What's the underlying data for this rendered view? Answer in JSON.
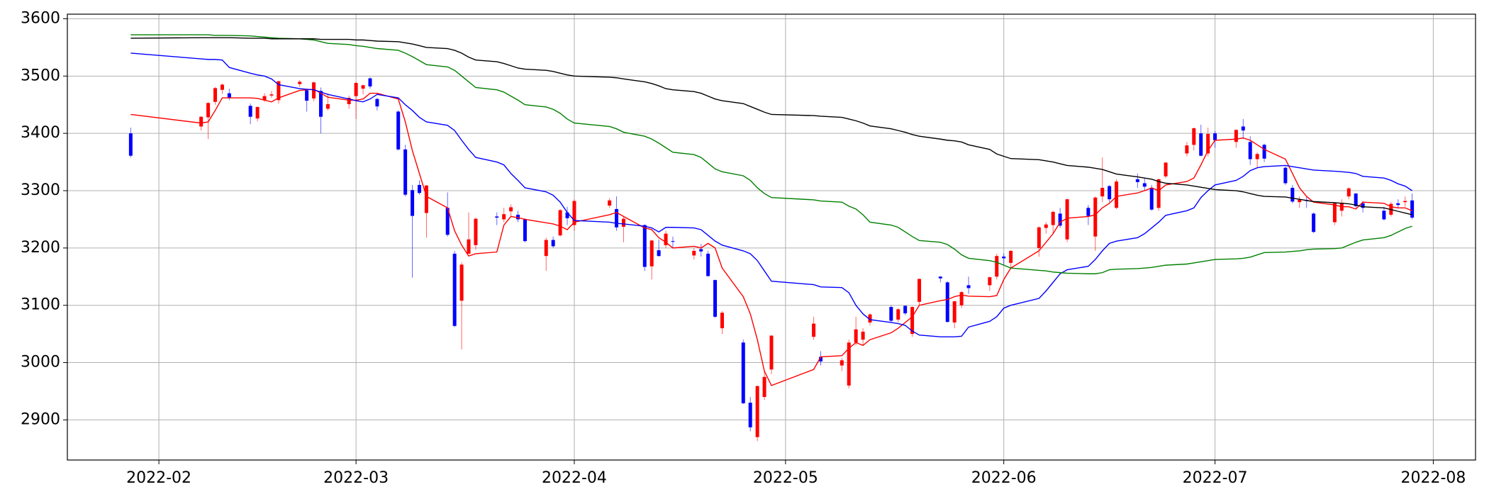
{
  "chart_data": {
    "type": "candlestick",
    "x": [
      "2022-01-28",
      "2022-02-07",
      "2022-02-08",
      "2022-02-09",
      "2022-02-10",
      "2022-02-11",
      "2022-02-14",
      "2022-02-15",
      "2022-02-16",
      "2022-02-17",
      "2022-02-18",
      "2022-02-21",
      "2022-02-22",
      "2022-02-23",
      "2022-02-24",
      "2022-02-25",
      "2022-02-28",
      "2022-03-01",
      "2022-03-02",
      "2022-03-03",
      "2022-03-04",
      "2022-03-07",
      "2022-03-08",
      "2022-03-09",
      "2022-03-10",
      "2022-03-11",
      "2022-03-14",
      "2022-03-15",
      "2022-03-16",
      "2022-03-17",
      "2022-03-18",
      "2022-03-21",
      "2022-03-22",
      "2022-03-23",
      "2022-03-24",
      "2022-03-25",
      "2022-03-28",
      "2022-03-29",
      "2022-03-30",
      "2022-03-31",
      "2022-04-01",
      "2022-04-06",
      "2022-04-07",
      "2022-04-08",
      "2022-04-11",
      "2022-04-12",
      "2022-04-13",
      "2022-04-14",
      "2022-04-15",
      "2022-04-18",
      "2022-04-19",
      "2022-04-20",
      "2022-04-21",
      "2022-04-22",
      "2022-04-25",
      "2022-04-26",
      "2022-04-27",
      "2022-04-28",
      "2022-04-29",
      "2022-05-05",
      "2022-05-06",
      "2022-05-09",
      "2022-05-10",
      "2022-05-11",
      "2022-05-12",
      "2022-05-13",
      "2022-05-16",
      "2022-05-17",
      "2022-05-18",
      "2022-05-19",
      "2022-05-20",
      "2022-05-23",
      "2022-05-24",
      "2022-05-25",
      "2022-05-26",
      "2022-05-27",
      "2022-05-30",
      "2022-05-31",
      "2022-06-01",
      "2022-06-02",
      "2022-06-06",
      "2022-06-07",
      "2022-06-08",
      "2022-06-09",
      "2022-06-10",
      "2022-06-13",
      "2022-06-14",
      "2022-06-15",
      "2022-06-16",
      "2022-06-17",
      "2022-06-20",
      "2022-06-21",
      "2022-06-22",
      "2022-06-23",
      "2022-06-24",
      "2022-06-27",
      "2022-06-28",
      "2022-06-29",
      "2022-06-30",
      "2022-07-01",
      "2022-07-04",
      "2022-07-05",
      "2022-07-06",
      "2022-07-07",
      "2022-07-08",
      "2022-07-11",
      "2022-07-12",
      "2022-07-13",
      "2022-07-14",
      "2022-07-15",
      "2022-07-18",
      "2022-07-19",
      "2022-07-20",
      "2022-07-21",
      "2022-07-22",
      "2022-07-25",
      "2022-07-26",
      "2022-07-27",
      "2022-07-28",
      "2022-07-29"
    ],
    "open": [
      3400,
      3412,
      3428,
      3455,
      3476,
      3470,
      3448,
      3426,
      3458,
      3466,
      3458,
      3486,
      3475,
      3461,
      3474,
      3443,
      3451,
      3465,
      3478,
      3496,
      3460,
      3438,
      3372,
      3301,
      3310,
      3261,
      3270,
      3190,
      3108,
      3190,
      3205,
      3255,
      3250,
      3264,
      3258,
      3250,
      3186,
      3214,
      3222,
      3262,
      3240,
      3274,
      3268,
      3237,
      3240,
      3168,
      3196,
      3205,
      3212,
      3187,
      3198,
      3190,
      3144,
      3060,
      3035,
      2930,
      2870,
      2940,
      2988,
      3045,
      3010,
      2995,
      2960,
      3035,
      3040,
      3070,
      3097,
      3075,
      3099,
      3050,
      3106,
      3150,
      3140,
      3070,
      3100,
      3135,
      3135,
      3150,
      3185,
      3174,
      3200,
      3235,
      3240,
      3260,
      3215,
      3270,
      3220,
      3290,
      3308,
      3270,
      3320,
      3313,
      3305,
      3270,
      3325,
      3365,
      3380,
      3400,
      3365,
      3400,
      3385,
      3412,
      3385,
      3355,
      3380,
      3340,
      3305,
      3280,
      3284,
      3260,
      3245,
      3265,
      3290,
      3295,
      3278,
      3265,
      3258,
      3278,
      3280,
      3283
    ],
    "high": [
      3410,
      3430,
      3455,
      3481,
      3487,
      3478,
      3452,
      3447,
      3470,
      3474,
      3492,
      3493,
      3476,
      3490,
      3480,
      3470,
      3466,
      3490,
      3485,
      3498,
      3462,
      3440,
      3380,
      3310,
      3318,
      3310,
      3297,
      3195,
      3175,
      3262,
      3253,
      3262,
      3270,
      3276,
      3265,
      3252,
      3218,
      3220,
      3268,
      3272,
      3285,
      3287,
      3290,
      3255,
      3241,
      3214,
      3215,
      3230,
      3220,
      3200,
      3207,
      3195,
      3145,
      3090,
      3040,
      2940,
      2960,
      2985,
      3048,
      3080,
      3020,
      3008,
      3040,
      3080,
      3060,
      3086,
      3100,
      3095,
      3100,
      3098,
      3147,
      3151,
      3142,
      3108,
      3125,
      3150,
      3150,
      3190,
      3190,
      3196,
      3238,
      3245,
      3265,
      3270,
      3286,
      3275,
      3290,
      3358,
      3310,
      3320,
      3330,
      3322,
      3310,
      3321,
      3350,
      3385,
      3410,
      3415,
      3410,
      3404,
      3407,
      3425,
      3395,
      3367,
      3382,
      3342,
      3310,
      3290,
      3290,
      3262,
      3280,
      3285,
      3306,
      3296,
      3282,
      3272,
      3280,
      3285,
      3290,
      3295
    ],
    "low": [
      3358,
      3405,
      3390,
      3450,
      3469,
      3458,
      3416,
      3421,
      3455,
      3462,
      3452,
      3481,
      3438,
      3456,
      3400,
      3440,
      3443,
      3425,
      3468,
      3478,
      3440,
      3370,
      3290,
      3148,
      3293,
      3218,
      3220,
      3062,
      3023,
      3190,
      3197,
      3240,
      3245,
      3255,
      3245,
      3210,
      3160,
      3200,
      3220,
      3240,
      3230,
      3270,
      3230,
      3210,
      3160,
      3145,
      3185,
      3200,
      3200,
      3180,
      3185,
      3150,
      3078,
      3050,
      2928,
      2880,
      2863,
      2935,
      2980,
      3040,
      2995,
      2985,
      2955,
      3030,
      3030,
      3065,
      3070,
      3070,
      3083,
      3045,
      3100,
      3140,
      3070,
      3060,
      3095,
      3120,
      3125,
      3145,
      3170,
      3165,
      3185,
      3225,
      3225,
      3235,
      3210,
      3240,
      3195,
      3280,
      3280,
      3268,
      3305,
      3300,
      3265,
      3265,
      3322,
      3360,
      3370,
      3360,
      3360,
      3375,
      3375,
      3390,
      3345,
      3340,
      3350,
      3310,
      3278,
      3270,
      3270,
      3226,
      3240,
      3255,
      3285,
      3270,
      3262,
      3248,
      3255,
      3270,
      3272,
      3250
    ],
    "close": [
      3361,
      3429,
      3453,
      3479,
      3485,
      3462,
      3429,
      3446,
      3465,
      3468,
      3491,
      3490,
      3457,
      3489,
      3429,
      3451,
      3462,
      3488,
      3484,
      3482,
      3447,
      3372,
      3293,
      3256,
      3296,
      3309,
      3223,
      3064,
      3171,
      3215,
      3251,
      3253,
      3259,
      3271,
      3250,
      3212,
      3214,
      3203,
      3266,
      3252,
      3282,
      3283,
      3236,
      3251,
      3167,
      3213,
      3186,
      3225,
      3211,
      3195,
      3194,
      3151,
      3080,
      3087,
      2929,
      2887,
      2959,
      2975,
      3047,
      3068,
      3002,
      3004,
      3035,
      3058,
      3054,
      3084,
      3073,
      3093,
      3086,
      3097,
      3146,
      3147,
      3071,
      3107,
      3123,
      3130,
      3149,
      3186,
      3182,
      3195,
      3236,
      3241,
      3263,
      3239,
      3285,
      3256,
      3288,
      3305,
      3285,
      3316,
      3315,
      3307,
      3267,
      3320,
      3349,
      3379,
      3409,
      3361,
      3399,
      3388,
      3406,
      3405,
      3355,
      3364,
      3356,
      3313,
      3281,
      3284,
      3282,
      3228,
      3278,
      3279,
      3304,
      3273,
      3270,
      3250,
      3277,
      3275,
      3282,
      3253
    ],
    "up_color": "#ff0000",
    "down_color": "#0000ff",
    "series": [
      {
        "color": "#ff0000",
        "values": [
          3433,
          3418,
          3420,
          3440,
          3462,
          3462,
          3462,
          3461,
          3458,
          3455,
          3462,
          3475,
          3476,
          3477,
          3470,
          3463,
          3458,
          3458,
          3460,
          3470,
          3470,
          3460,
          3420,
          3370,
          3330,
          3290,
          3270,
          3230,
          3205,
          3186,
          3190,
          3193,
          3240,
          3255,
          3253,
          3250,
          3244,
          3242,
          3238,
          3232,
          3245,
          3258,
          3262,
          3255,
          3235,
          3232,
          3218,
          3210,
          3200,
          3203,
          3200,
          3208,
          3200,
          3165,
          3115,
          3085,
          3040,
          2985,
          2960,
          2988,
          3010,
          3012,
          3025,
          3035,
          3030,
          3040,
          3052,
          3060,
          3070,
          3080,
          3100,
          3108,
          3110,
          3115,
          3118,
          3116,
          3115,
          3117,
          3145,
          3165,
          3195,
          3210,
          3225,
          3245,
          3252,
          3255,
          3258,
          3270,
          3278,
          3290,
          3296,
          3300,
          3305,
          3300,
          3310,
          3316,
          3322,
          3345,
          3370,
          3388,
          3390,
          3392,
          3388,
          3380,
          3372,
          3355,
          3330,
          3305,
          3290,
          3280,
          3275,
          3272,
          3272,
          3268,
          3280,
          3278,
          3272,
          3270,
          3270,
          3265
        ]
      },
      {
        "color": "#0000ff",
        "values": [
          3540,
          3530,
          3529,
          3529,
          3528,
          3515,
          3505,
          3502,
          3500,
          3495,
          3485,
          3478,
          3477,
          3476,
          3472,
          3468,
          3460,
          3457,
          3455,
          3460,
          3468,
          3462,
          3450,
          3440,
          3428,
          3420,
          3414,
          3405,
          3388,
          3372,
          3358,
          3350,
          3345,
          3330,
          3318,
          3305,
          3298,
          3292,
          3280,
          3262,
          3248,
          3245,
          3243,
          3242,
          3238,
          3235,
          3228,
          3236,
          3236,
          3235,
          3232,
          3222,
          3212,
          3205,
          3195,
          3190,
          3178,
          3160,
          3142,
          3136,
          3132,
          3131,
          3122,
          3100,
          3085,
          3075,
          3070,
          3068,
          3065,
          3055,
          3048,
          3045,
          3045,
          3045,
          3046,
          3062,
          3072,
          3080,
          3095,
          3100,
          3112,
          3125,
          3140,
          3155,
          3162,
          3168,
          3180,
          3195,
          3208,
          3212,
          3218,
          3225,
          3235,
          3245,
          3257,
          3265,
          3270,
          3288,
          3300,
          3310,
          3318,
          3325,
          3335,
          3340,
          3342,
          3344,
          3342,
          3340,
          3338,
          3336,
          3334,
          3333,
          3332,
          3330,
          3325,
          3322,
          3318,
          3312,
          3308,
          3300
        ]
      },
      {
        "color": "#008000",
        "values": [
          3572,
          3572,
          3572,
          3571,
          3571,
          3571,
          3570,
          3569,
          3568,
          3567,
          3566,
          3565,
          3564,
          3563,
          3560,
          3557,
          3555,
          3553,
          3552,
          3550,
          3548,
          3545,
          3540,
          3534,
          3527,
          3520,
          3516,
          3510,
          3500,
          3490,
          3480,
          3476,
          3472,
          3465,
          3458,
          3450,
          3446,
          3442,
          3435,
          3425,
          3418,
          3412,
          3408,
          3402,
          3395,
          3390,
          3383,
          3375,
          3367,
          3363,
          3358,
          3348,
          3338,
          3333,
          3326,
          3318,
          3305,
          3295,
          3288,
          3284,
          3282,
          3280,
          3273,
          3268,
          3258,
          3245,
          3240,
          3236,
          3228,
          3220,
          3213,
          3210,
          3206,
          3198,
          3188,
          3182,
          3178,
          3175,
          3170,
          3165,
          3161,
          3160,
          3158,
          3157,
          3156,
          3155,
          3155,
          3157,
          3162,
          3163,
          3164,
          3165,
          3166,
          3168,
          3170,
          3172,
          3174,
          3176,
          3178,
          3180,
          3181,
          3182,
          3184,
          3188,
          3192,
          3193,
          3194,
          3195,
          3197,
          3198,
          3199,
          3200,
          3205,
          3210,
          3214,
          3218,
          3222,
          3228,
          3234,
          3238
        ]
      },
      {
        "color": "#000000",
        "values": [
          3566,
          3567,
          3567,
          3567,
          3567,
          3567,
          3566,
          3566,
          3566,
          3565,
          3565,
          3565,
          3565,
          3565,
          3564,
          3564,
          3564,
          3563,
          3563,
          3562,
          3561,
          3560,
          3558,
          3556,
          3553,
          3550,
          3548,
          3545,
          3540,
          3533,
          3528,
          3525,
          3522,
          3518,
          3514,
          3512,
          3510,
          3508,
          3505,
          3502,
          3500,
          3498,
          3497,
          3495,
          3490,
          3487,
          3483,
          3478,
          3476,
          3473,
          3470,
          3465,
          3460,
          3457,
          3452,
          3447,
          3442,
          3437,
          3433,
          3431,
          3430,
          3428,
          3425,
          3422,
          3418,
          3413,
          3408,
          3405,
          3402,
          3398,
          3395,
          3390,
          3388,
          3387,
          3385,
          3380,
          3372,
          3364,
          3360,
          3356,
          3354,
          3352,
          3350,
          3347,
          3344,
          3341,
          3339,
          3337,
          3333,
          3329,
          3324,
          3322,
          3320,
          3316,
          3313,
          3310,
          3308,
          3306,
          3304,
          3302,
          3300,
          3298,
          3295,
          3292,
          3290,
          3289,
          3287,
          3285,
          3283,
          3281,
          3279,
          3278,
          3277,
          3275,
          3272,
          3270,
          3267,
          3264,
          3261,
          3258
        ]
      }
    ],
    "xlim": [
      "2022-01-19",
      "2022-08-07"
    ],
    "xticks": [
      {
        "value": "2022-02-01",
        "label": "2022-02"
      },
      {
        "value": "2022-03-01",
        "label": "2022-03"
      },
      {
        "value": "2022-04-01",
        "label": "2022-04"
      },
      {
        "value": "2022-05-01",
        "label": "2022-05"
      },
      {
        "value": "2022-06-01",
        "label": "2022-06"
      },
      {
        "value": "2022-07-01",
        "label": "2022-07"
      },
      {
        "value": "2022-08-01",
        "label": "2022-08"
      }
    ],
    "ylim": [
      2830,
      3608
    ],
    "yticks": [
      2900,
      3000,
      3100,
      3200,
      3300,
      3400,
      3500,
      3600
    ],
    "grid": true
  }
}
